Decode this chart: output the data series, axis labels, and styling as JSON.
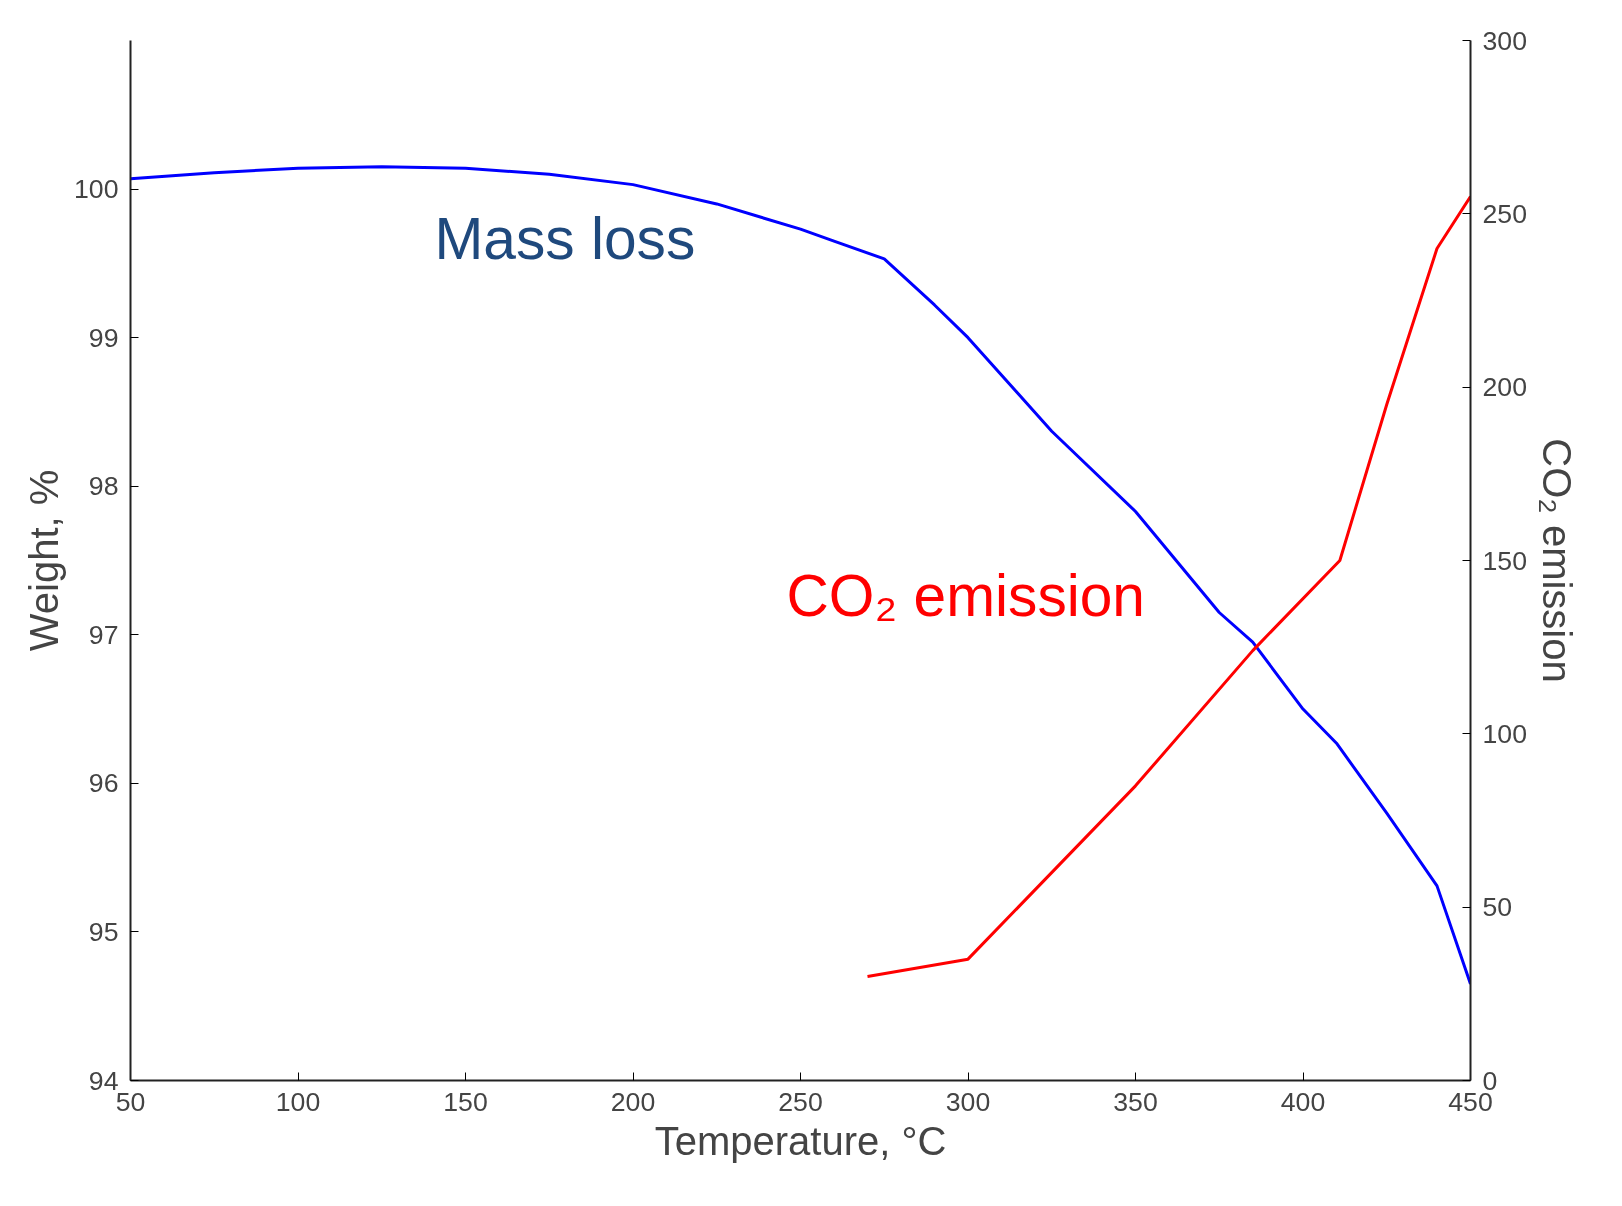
{
  "chart_data": {
    "type": "line",
    "xlabel": "Temperature, °C",
    "ylabel": "Weight, %",
    "y2label": "CO₂ emission",
    "xlim": [
      50,
      450
    ],
    "xticks": [
      50,
      100,
      150,
      200,
      250,
      300,
      350,
      400,
      450
    ],
    "ylim": [
      94,
      101
    ],
    "yticks": [
      94,
      95,
      96,
      97,
      98,
      99,
      100
    ],
    "y2lim": [
      0,
      300
    ],
    "y2ticks": [
      0,
      50,
      100,
      150,
      200,
      250,
      300
    ],
    "grid": false,
    "marker": "none",
    "line_style": "solid",
    "series": [
      {
        "name": "Mass loss",
        "color": "#0000ff",
        "x": [
          50,
          75,
          100,
          125,
          150,
          175,
          200,
          225,
          250,
          260,
          275,
          290,
          300,
          325,
          350,
          375,
          385,
          400,
          410,
          425,
          440,
          450
        ],
        "values": [
          100.07,
          100.11,
          100.14,
          100.15,
          100.14,
          100.1,
          100.03,
          99.9,
          99.73,
          99.65,
          99.53,
          99.22,
          99.0,
          98.37,
          97.83,
          97.15,
          96.95,
          96.5,
          96.27,
          95.8,
          95.31,
          94.65
        ]
      },
      {
        "name": "CO₂ emission",
        "color": "#ff0000",
        "axis": "y2",
        "x": [
          270,
          300,
          350,
          385,
          411,
          425,
          440,
          450
        ],
        "values": [
          30,
          35,
          85,
          124,
          150,
          195,
          240,
          255
        ]
      }
    ]
  }
}
